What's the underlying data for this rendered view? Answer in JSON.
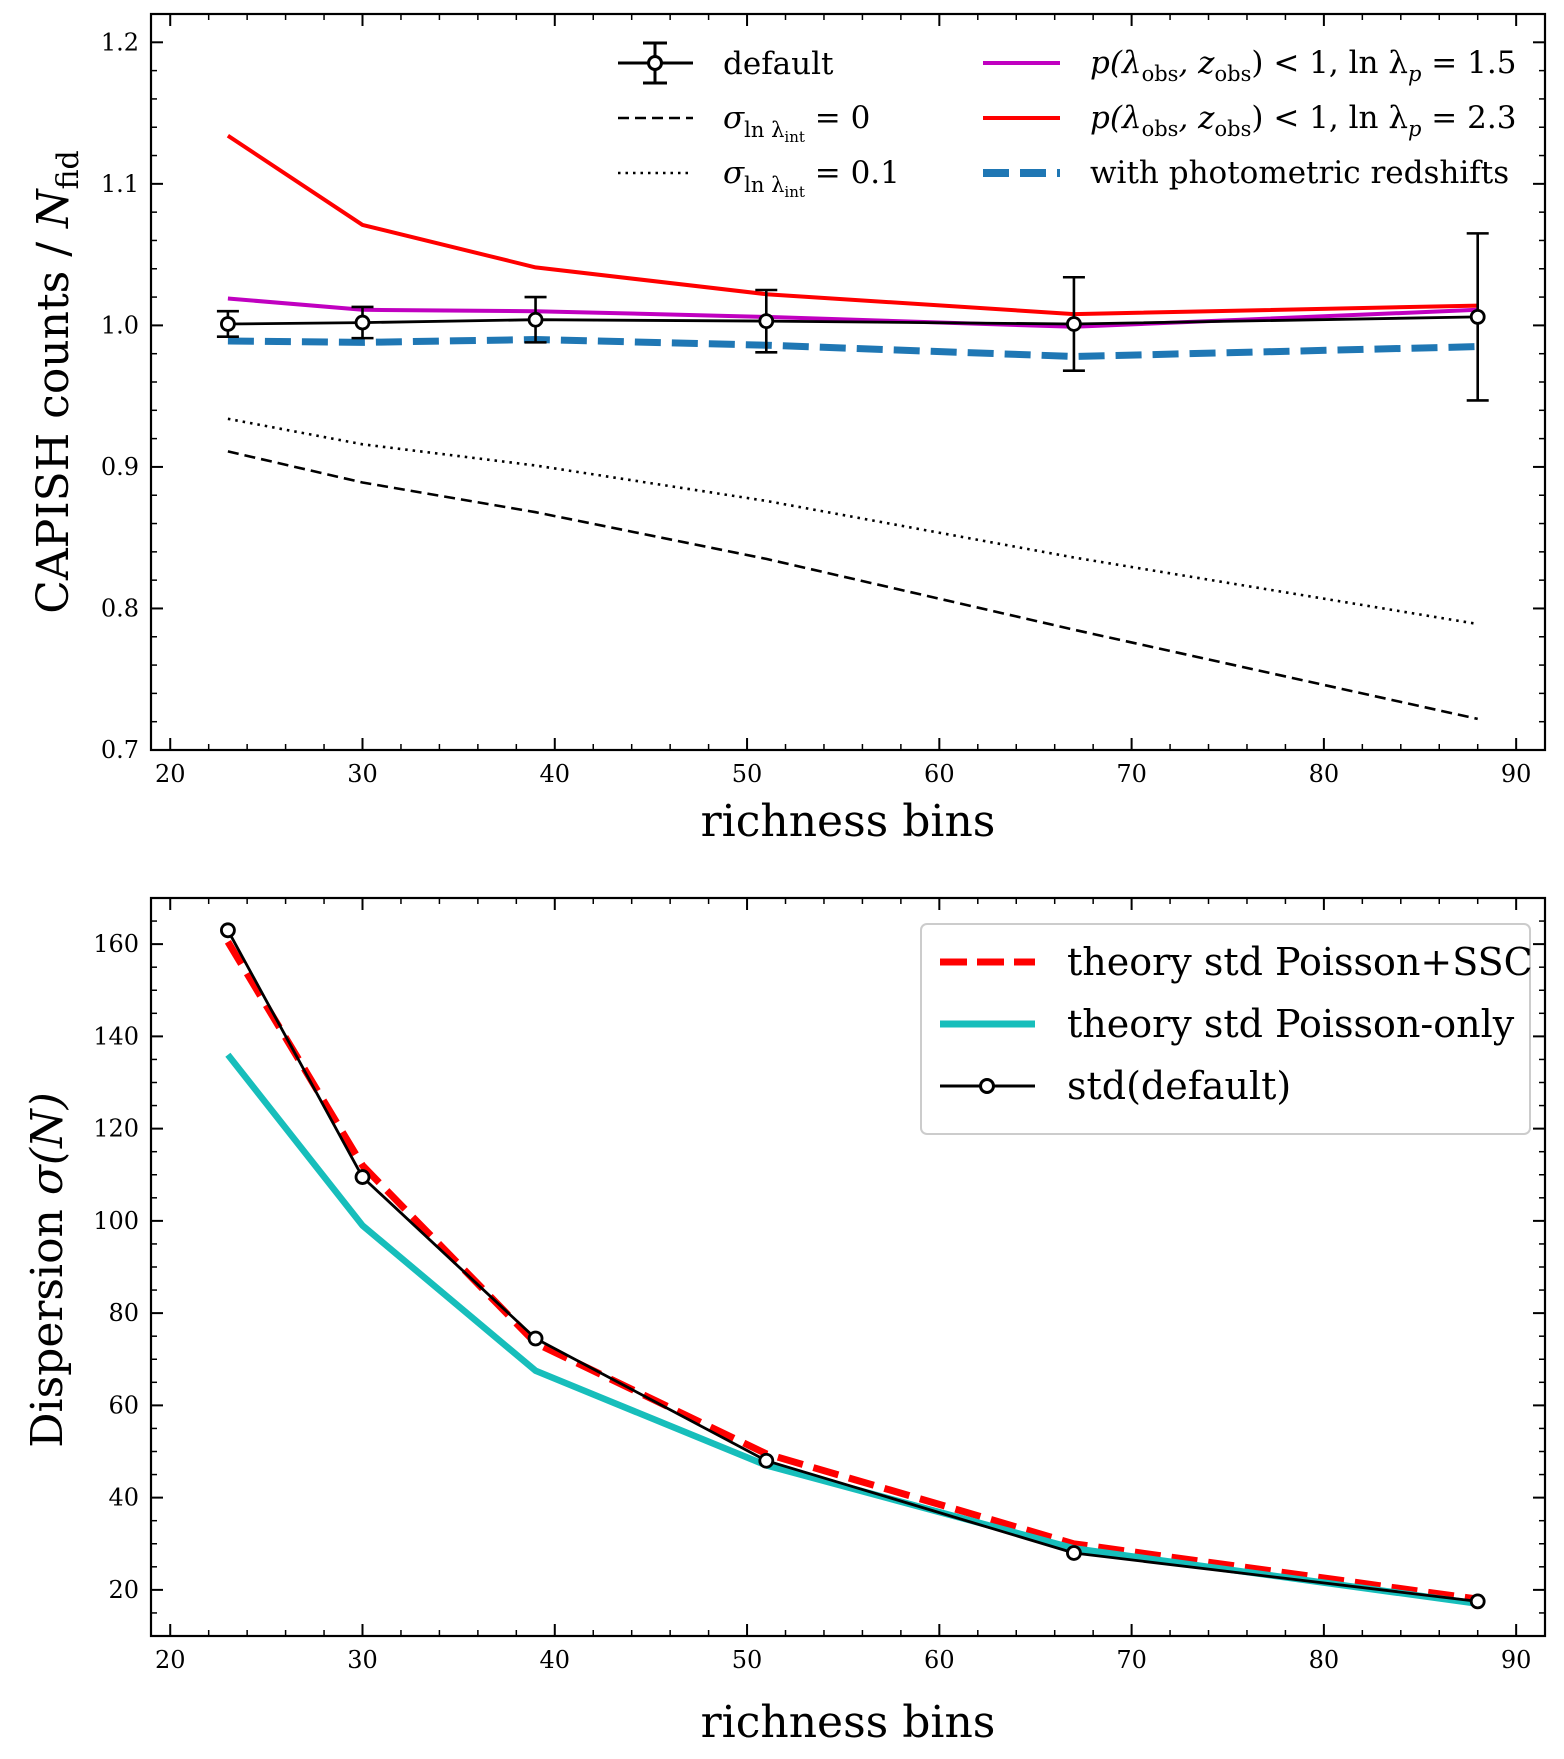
{
  "chart_data": [
    {
      "type": "line",
      "xlabel": "richness bins",
      "ylabel": "CAPISH counts / N_fid",
      "ylabel_parts": {
        "main": "CAPISH counts / ",
        "var": "N",
        "sub": "fid"
      },
      "xlim": [
        19,
        91.5
      ],
      "ylim": [
        0.7,
        1.22
      ],
      "xticks": [
        20,
        30,
        40,
        50,
        60,
        70,
        80,
        90
      ],
      "yticks": [
        0.7,
        0.8,
        0.9,
        1.0,
        1.1,
        1.2
      ],
      "xtick_labels": [
        "20",
        "30",
        "40",
        "50",
        "60",
        "70",
        "80",
        "90"
      ],
      "ytick_labels": [
        "0.7",
        "0.8",
        "0.9",
        "1.0",
        "1.1",
        "1.2"
      ],
      "x": [
        23,
        30,
        39,
        51,
        67,
        88
      ],
      "legend_position": "top",
      "series": [
        {
          "name": "default",
          "color": "#000000",
          "style": "solid-markers",
          "values": [
            1.001,
            1.002,
            1.004,
            1.003,
            1.001,
            1.006
          ],
          "yerr": [
            0.009,
            0.011,
            0.016,
            0.022,
            0.033,
            0.059
          ]
        },
        {
          "name": "σ_lnλint = 0",
          "name_parts": {
            "sigma": "σ",
            "sub": "ln λ",
            "subsub": "int",
            "rest": " = 0"
          },
          "color": "#000000",
          "style": "dashed",
          "values": [
            0.911,
            0.889,
            0.868,
            0.835,
            0.785,
            0.722
          ]
        },
        {
          "name": "σ_lnλint = 0.1",
          "name_parts": {
            "sigma": "σ",
            "sub": "ln λ",
            "subsub": "int",
            "rest": " = 0.1"
          },
          "color": "#000000",
          "style": "dotted",
          "values": [
            0.934,
            0.916,
            0.901,
            0.876,
            0.836,
            0.789
          ]
        },
        {
          "name": "p(λobs, zobs) < 1, ln λp = 1.5",
          "name_parts": {
            "pre": "p(λ",
            "s1": "obs",
            "mid": ", z",
            "s2": "obs",
            "post": ") < 1, ln λ",
            "s3": "p",
            "end": " = 1.5"
          },
          "color": "#c000c0",
          "style": "solid",
          "values": [
            1.019,
            1.011,
            1.01,
            1.006,
            0.999,
            1.011
          ]
        },
        {
          "name": "p(λobs, zobs) < 1, ln λp = 2.3",
          "name_parts": {
            "pre": "p(λ",
            "s1": "obs",
            "mid": ", z",
            "s2": "obs",
            "post": ") < 1, ln λ",
            "s3": "p",
            "end": " = 2.3"
          },
          "color": "#ff0000",
          "style": "solid",
          "values": [
            1.134,
            1.071,
            1.041,
            1.022,
            1.008,
            1.014
          ]
        },
        {
          "name": "with photometric redshifts",
          "color": "#1f77b4",
          "style": "thick-dashed",
          "values": [
            0.989,
            0.988,
            0.99,
            0.986,
            0.978,
            0.985
          ]
        }
      ]
    },
    {
      "type": "line",
      "xlabel": "richness bins",
      "ylabel": "Dispersion σ(N)",
      "ylabel_parts": {
        "main": "Dispersion ",
        "var": "σ(N)"
      },
      "xlim": [
        19,
        91.5
      ],
      "ylim": [
        10,
        170
      ],
      "xticks": [
        20,
        30,
        40,
        50,
        60,
        70,
        80,
        90
      ],
      "yticks": [
        20,
        40,
        60,
        80,
        100,
        120,
        140,
        160
      ],
      "xtick_labels": [
        "20",
        "30",
        "40",
        "50",
        "60",
        "70",
        "80",
        "90"
      ],
      "ytick_labels": [
        "20",
        "40",
        "60",
        "80",
        "100",
        "120",
        "140",
        "160"
      ],
      "x": [
        23,
        30,
        39,
        51,
        67,
        88
      ],
      "legend_position": "top-right",
      "series": [
        {
          "name": "theory std Poisson+SSC",
          "color": "#ff0000",
          "style": "thick-dashed",
          "values": [
            160.5,
            112.0,
            73.5,
            49.5,
            30.0,
            18.0
          ]
        },
        {
          "name": "theory std Poisson-only",
          "color": "#17bebb",
          "style": "thick-solid",
          "values": [
            136.0,
            99.0,
            67.5,
            47.0,
            29.0,
            17.0
          ]
        },
        {
          "name": "std(default)",
          "color": "#000000",
          "style": "solid-markers",
          "values": [
            163.0,
            109.5,
            74.5,
            48.0,
            28.0,
            17.5
          ]
        }
      ]
    }
  ]
}
